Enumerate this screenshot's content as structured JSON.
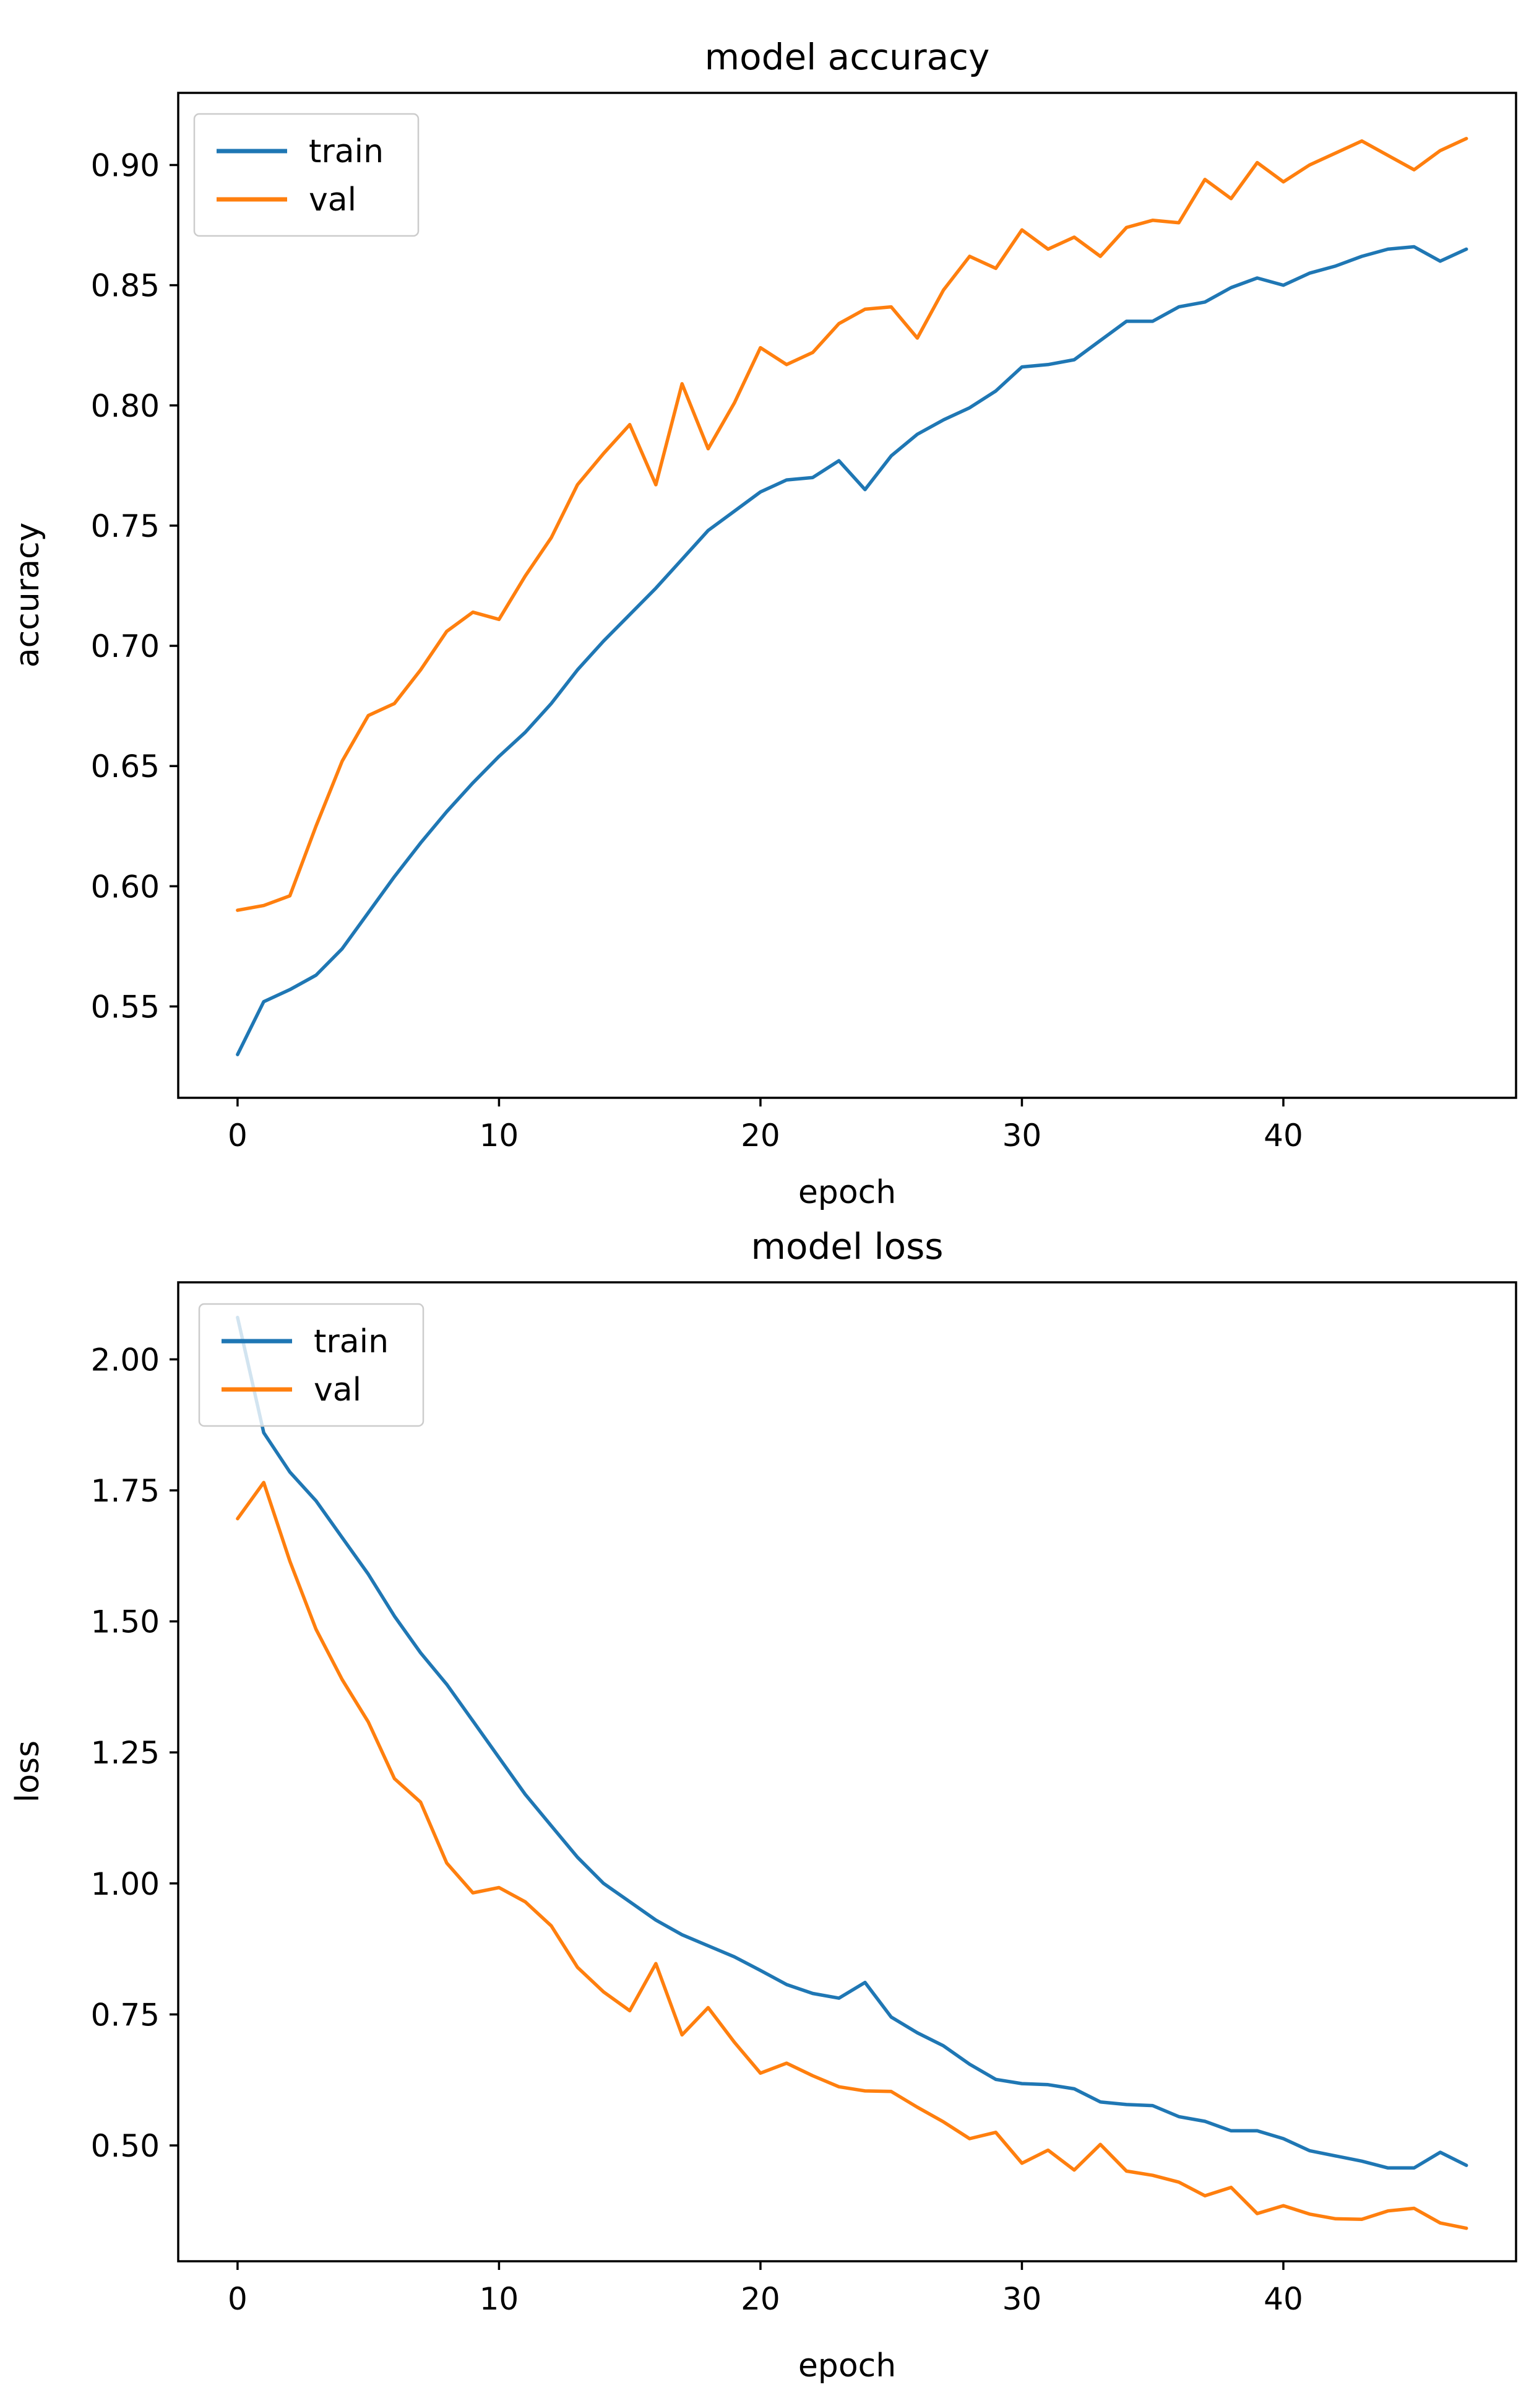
{
  "figure": {
    "background": "#ffffff",
    "text_color": "#000000",
    "spine_color": "#000000",
    "legend": {
      "labels": [
        "train",
        "val"
      ],
      "border_color": "#cccccc",
      "background": "rgba(255,255,255,0.8)",
      "position": "upper left"
    }
  },
  "chart_data": [
    {
      "type": "line",
      "title": "model accuracy",
      "xlabel": "epoch",
      "ylabel": "accuracy",
      "grid": false,
      "legend_position": "upper left",
      "xlim": [
        -2.27,
        48.9
      ],
      "ylim": [
        0.512,
        0.93
      ],
      "xticks": [
        0,
        10,
        20,
        30,
        40
      ],
      "xtick_labels": [
        "0",
        "10",
        "20",
        "30",
        "40"
      ],
      "yticks": [
        0.55,
        0.6,
        0.65,
        0.7,
        0.75,
        0.8,
        0.85,
        0.9
      ],
      "ytick_labels": [
        "0.55",
        "0.60",
        "0.65",
        "0.70",
        "0.75",
        "0.80",
        "0.85",
        "0.90"
      ],
      "x": [
        0,
        1,
        2,
        3,
        4,
        5,
        6,
        7,
        8,
        9,
        10,
        11,
        12,
        13,
        14,
        15,
        16,
        17,
        18,
        19,
        20,
        21,
        22,
        23,
        24,
        25,
        26,
        27,
        28,
        29,
        30,
        31,
        32,
        33,
        34,
        35,
        36,
        37,
        38,
        39,
        40,
        41,
        42,
        43,
        44,
        45,
        46,
        47
      ],
      "series": [
        {
          "name": "train",
          "color": "#1f77b4",
          "values": [
            0.53,
            0.552,
            0.557,
            0.563,
            0.574,
            0.589,
            0.604,
            0.618,
            0.631,
            0.643,
            0.654,
            0.664,
            0.676,
            0.69,
            0.702,
            0.713,
            0.724,
            0.736,
            0.748,
            0.756,
            0.764,
            0.769,
            0.77,
            0.777,
            0.765,
            0.779,
            0.788,
            0.794,
            0.799,
            0.806,
            0.816,
            0.817,
            0.819,
            0.827,
            0.835,
            0.835,
            0.841,
            0.843,
            0.849,
            0.853,
            0.85,
            0.855,
            0.858,
            0.862,
            0.865,
            0.866,
            0.86,
            0.865
          ]
        },
        {
          "name": "val",
          "color": "#ff7f0e",
          "values": [
            0.59,
            0.592,
            0.596,
            0.625,
            0.652,
            0.671,
            0.676,
            0.69,
            0.706,
            0.714,
            0.711,
            0.729,
            0.745,
            0.767,
            0.78,
            0.792,
            0.767,
            0.809,
            0.782,
            0.801,
            0.824,
            0.817,
            0.822,
            0.834,
            0.84,
            0.841,
            0.828,
            0.848,
            0.862,
            0.857,
            0.873,
            0.865,
            0.87,
            0.862,
            0.874,
            0.877,
            0.876,
            0.894,
            0.886,
            0.901,
            0.893,
            0.9,
            0.905,
            0.91,
            0.904,
            0.898,
            0.906,
            0.911
          ]
        }
      ]
    },
    {
      "type": "line",
      "title": "model loss",
      "xlabel": "epoch",
      "ylabel": "loss",
      "grid": false,
      "legend_position": "upper left",
      "xlim": [
        -2.27,
        48.9
      ],
      "ylim": [
        0.279,
        2.147
      ],
      "xticks": [
        0,
        10,
        20,
        30,
        40
      ],
      "xtick_labels": [
        "0",
        "10",
        "20",
        "30",
        "40"
      ],
      "yticks": [
        0.5,
        0.75,
        1.0,
        1.25,
        1.5,
        1.75,
        2.0
      ],
      "ytick_labels": [
        "0.50",
        "0.75",
        "1.00",
        "1.25",
        "1.50",
        "1.75",
        "2.00"
      ],
      "x": [
        0,
        1,
        2,
        3,
        4,
        5,
        6,
        7,
        8,
        9,
        10,
        11,
        12,
        13,
        14,
        15,
        16,
        17,
        18,
        19,
        20,
        21,
        22,
        23,
        24,
        25,
        26,
        27,
        28,
        29,
        30,
        31,
        32,
        33,
        34,
        35,
        36,
        37,
        38,
        39,
        40,
        41,
        42,
        43,
        44,
        45,
        46,
        47
      ],
      "series": [
        {
          "name": "train",
          "color": "#1f77b4",
          "values": [
            2.08,
            1.86,
            1.785,
            1.73,
            1.66,
            1.59,
            1.51,
            1.44,
            1.38,
            1.31,
            1.24,
            1.17,
            1.11,
            1.05,
            1.0,
            0.965,
            0.93,
            0.902,
            0.881,
            0.86,
            0.834,
            0.807,
            0.79,
            0.781,
            0.811,
            0.745,
            0.715,
            0.69,
            0.655,
            0.626,
            0.618,
            0.616,
            0.608,
            0.583,
            0.578,
            0.576,
            0.555,
            0.546,
            0.528,
            0.528,
            0.513,
            0.49,
            0.48,
            0.47,
            0.457,
            0.457,
            0.487,
            0.462
          ]
        },
        {
          "name": "val",
          "color": "#ff7f0e",
          "values": [
            1.696,
            1.765,
            1.615,
            1.485,
            1.389,
            1.308,
            1.2,
            1.155,
            1.039,
            0.982,
            0.992,
            0.965,
            0.919,
            0.84,
            0.793,
            0.757,
            0.847,
            0.711,
            0.763,
            0.697,
            0.638,
            0.657,
            0.633,
            0.612,
            0.604,
            0.603,
            0.573,
            0.545,
            0.513,
            0.525,
            0.466,
            0.491,
            0.453,
            0.502,
            0.451,
            0.443,
            0.43,
            0.404,
            0.42,
            0.37,
            0.385,
            0.369,
            0.36,
            0.359,
            0.375,
            0.38,
            0.352,
            0.342
          ]
        }
      ]
    }
  ]
}
